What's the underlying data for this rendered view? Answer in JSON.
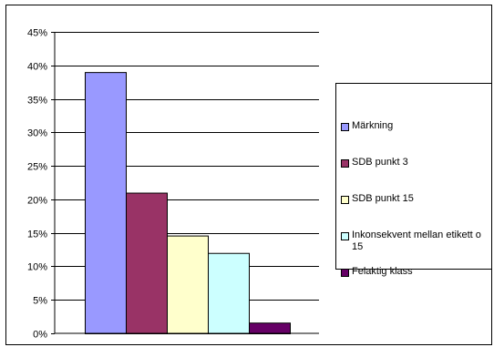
{
  "chart_data": {
    "type": "bar",
    "categories": [
      "Märkning",
      "SDB punkt 3",
      "SDB punkt 15",
      "Inkonsekvent mellan etikett o 15",
      "Felaktig klass"
    ],
    "values": [
      39,
      21,
      14.6,
      12,
      1.6
    ],
    "unit": "%",
    "colors": [
      "#9999ff",
      "#993366",
      "#ffffcc",
      "#ccffff",
      "#660066"
    ],
    "ylim": [
      0,
      45
    ],
    "yticks": [
      "0%",
      "5%",
      "10%",
      "15%",
      "20%",
      "25%",
      "30%",
      "35%",
      "40%",
      "45%"
    ],
    "grid": true,
    "legend_position": "right",
    "legend": [
      {
        "label": "Märkning"
      },
      {
        "label": "SDB punkt 3"
      },
      {
        "label": "SDB punkt 15"
      },
      {
        "label": "Inkonsekvent mellan etikett o 15"
      },
      {
        "label": "Felaktig klass"
      }
    ]
  }
}
